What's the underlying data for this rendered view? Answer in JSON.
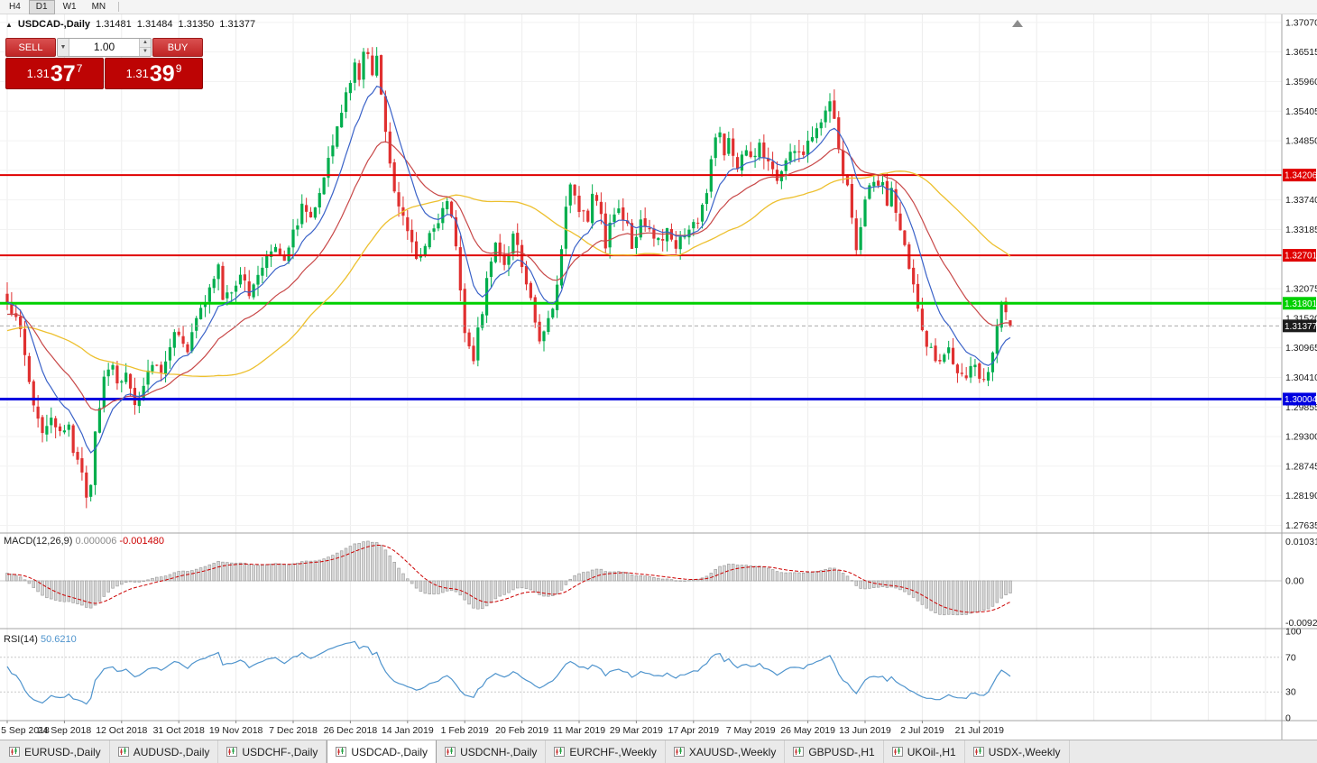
{
  "toolbar": {
    "buttons": [
      {
        "label": "H4",
        "active": false
      },
      {
        "label": "D1",
        "active": true
      },
      {
        "label": "W1",
        "active": false
      },
      {
        "label": "MN",
        "active": false
      }
    ]
  },
  "symbol_info": {
    "collapse_icon": "▲",
    "symbol": "USDCAD-,Daily",
    "open": "1.31481",
    "high": "1.31484",
    "low": "1.31350",
    "close": "1.31377"
  },
  "trade": {
    "sell_label": "SELL",
    "buy_label": "BUY",
    "volume": "1.00",
    "bid": {
      "prefix": "1.31",
      "big": "37",
      "sup": "7"
    },
    "ask": {
      "prefix": "1.31",
      "big": "39",
      "sup": "9"
    }
  },
  "price_axis": {
    "ladder": [
      1.3707,
      1.36515,
      1.3596,
      1.35405,
      1.3485,
      1.34295,
      1.3374,
      1.33185,
      1.3263,
      1.32075,
      1.3152,
      1.30965,
      1.3041,
      1.29855,
      1.293,
      1.28745,
      1.2819,
      1.27635
    ],
    "decimals": 5
  },
  "levels": [
    {
      "name": "resistance-line-1",
      "price": 1.34206,
      "label": "1.34206",
      "color": "#e00000",
      "width": 2
    },
    {
      "name": "resistance-line-2",
      "price": 1.32701,
      "label": "1.32701",
      "color": "#e00000",
      "width": 2
    },
    {
      "name": "support-line-green",
      "price": 1.31801,
      "label": "1.31801",
      "color": "#00d000",
      "width": 3
    },
    {
      "name": "support-line-blue",
      "price": 1.30004,
      "label": "1.30004",
      "color": "#0000e0",
      "width": 3
    }
  ],
  "current_price": {
    "price": 1.31377,
    "label": "1.31377",
    "badge_color": "#1b1b1b",
    "line_color": "#ababab"
  },
  "macd_panel": {
    "title": "MACD(12,26,9)",
    "value_main": "0.000006",
    "value_signal": "-0.001480",
    "axis_labels": [
      "0.010311",
      "0.00",
      "-0.009201"
    ],
    "histogram_fill": "#d8d8d8",
    "histogram_stroke": "#9f9f9f",
    "signal_color": "#cc0000"
  },
  "rsi_panel": {
    "title": "RSI(14)",
    "value": "50.6210",
    "axis_labels": [
      "100",
      "70",
      "30",
      "0"
    ],
    "level_lines": [
      70,
      30
    ],
    "line_color": "#4f94cd"
  },
  "dates": [
    "5 Sep 2018",
    "24 Sep 2018",
    "12 Oct 2018",
    "31 Oct 2018",
    "19 Nov 2018",
    "7 Dec 2018",
    "26 Dec 2018",
    "14 Jan 2019",
    "1 Feb 2019",
    "20 Feb 2019",
    "11 Mar 2019",
    "29 Mar 2019",
    "17 Apr 2019",
    "7 May 2019",
    "26 May 2019",
    "13 Jun 2019",
    "2 Jul 2019",
    "21 Jul 2019"
  ],
  "tabs": {
    "items": [
      "EURUSD-,Daily",
      "AUDUSD-,Daily",
      "USDCHF-,Daily",
      "USDCAD-,Daily",
      "USDCNH-,Daily",
      "EURCHF-,Weekly",
      "XAUUSD-,Weekly",
      "GBPUSD-,H1",
      "UKOil-,H1",
      "USDX-,Weekly"
    ],
    "active_index": 3
  },
  "chart_data": {
    "type": "candlestick",
    "symbol": "USDCAD",
    "timeframe": "Daily",
    "x_range": [
      "5 Sep 2018",
      "31 Jul 2019"
    ],
    "price_range": [
      1.27635,
      1.3707
    ],
    "candle_count": 229,
    "candles_per_gridline": 13,
    "up_color": "#00ae4d",
    "down_color": "#e03030",
    "last_ohlc": {
      "open": 1.31481,
      "high": 1.31484,
      "low": 1.3135,
      "close": 1.31377
    },
    "horizontal_levels": [
      1.34206,
      1.32701,
      1.31801,
      1.30004
    ],
    "ma_lines": [
      {
        "name": "fast",
        "type": "ema",
        "period": 10,
        "color": "#3a62c8"
      },
      {
        "name": "medium",
        "type": "ema",
        "period": 25,
        "color": "#c84848"
      },
      {
        "name": "slow",
        "type": "sma",
        "period": 50,
        "color": "#edc02f"
      }
    ],
    "close_anchors": [
      [
        0,
        1.3172
      ],
      [
        2,
        1.3165
      ],
      [
        4,
        1.308
      ],
      [
        6,
        1.299
      ],
      [
        8,
        1.2942
      ],
      [
        10,
        1.2955
      ],
      [
        12,
        1.293
      ],
      [
        14,
        1.2962
      ],
      [
        15,
        1.2906
      ],
      [
        17,
        1.2852
      ],
      [
        18,
        1.2822
      ],
      [
        19,
        1.284
      ],
      [
        20,
        1.295
      ],
      [
        22,
        1.3032
      ],
      [
        24,
        1.3068
      ],
      [
        25,
        1.3022
      ],
      [
        27,
        1.3052
      ],
      [
        29,
        1.2992
      ],
      [
        31,
        1.303
      ],
      [
        33,
        1.3075
      ],
      [
        35,
        1.3052
      ],
      [
        37,
        1.3105
      ],
      [
        39,
        1.313
      ],
      [
        41,
        1.3094
      ],
      [
        43,
        1.3146
      ],
      [
        45,
        1.3186
      ],
      [
        47,
        1.3228
      ],
      [
        48,
        1.3248
      ],
      [
        49,
        1.3182
      ],
      [
        51,
        1.3206
      ],
      [
        53,
        1.3238
      ],
      [
        55,
        1.3194
      ],
      [
        57,
        1.323
      ],
      [
        59,
        1.3272
      ],
      [
        61,
        1.3292
      ],
      [
        63,
        1.3268
      ],
      [
        65,
        1.3312
      ],
      [
        67,
        1.336
      ],
      [
        69,
        1.3344
      ],
      [
        71,
        1.3396
      ],
      [
        73,
        1.3448
      ],
      [
        75,
        1.3504
      ],
      [
        77,
        1.3574
      ],
      [
        79,
        1.3624
      ],
      [
        80,
        1.3594
      ],
      [
        81,
        1.3648
      ],
      [
        82,
        1.3658
      ],
      [
        83,
        1.3604
      ],
      [
        84,
        1.3642
      ],
      [
        85,
        1.3564
      ],
      [
        86,
        1.3504
      ],
      [
        87,
        1.3452
      ],
      [
        88,
        1.3394
      ],
      [
        90,
        1.3344
      ],
      [
        92,
        1.3298
      ],
      [
        93,
        1.327
      ],
      [
        95,
        1.3292
      ],
      [
        96,
        1.3314
      ],
      [
        98,
        1.334
      ],
      [
        100,
        1.3364
      ],
      [
        101,
        1.3334
      ],
      [
        102,
        1.3294
      ],
      [
        103,
        1.3202
      ],
      [
        104,
        1.3134
      ],
      [
        105,
        1.31
      ],
      [
        106,
        1.3078
      ],
      [
        107,
        1.3124
      ],
      [
        108,
        1.3165
      ],
      [
        109,
        1.3226
      ],
      [
        110,
        1.3268
      ],
      [
        111,
        1.3296
      ],
      [
        112,
        1.3278
      ],
      [
        113,
        1.325
      ],
      [
        114,
        1.3264
      ],
      [
        115,
        1.33
      ],
      [
        116,
        1.3284
      ],
      [
        117,
        1.3246
      ],
      [
        118,
        1.3226
      ],
      [
        119,
        1.3186
      ],
      [
        120,
        1.3144
      ],
      [
        121,
        1.3112
      ],
      [
        122,
        1.3136
      ],
      [
        123,
        1.3158
      ],
      [
        124,
        1.3166
      ],
      [
        125,
        1.3216
      ],
      [
        126,
        1.3286
      ],
      [
        127,
        1.3356
      ],
      [
        128,
        1.3408
      ],
      [
        129,
        1.3388
      ],
      [
        130,
        1.3362
      ],
      [
        132,
        1.3344
      ],
      [
        133,
        1.3378
      ],
      [
        135,
        1.3352
      ],
      [
        136,
        1.3286
      ],
      [
        137,
        1.3332
      ],
      [
        139,
        1.3362
      ],
      [
        141,
        1.333
      ],
      [
        142,
        1.329
      ],
      [
        144,
        1.334
      ],
      [
        146,
        1.3322
      ],
      [
        148,
        1.3292
      ],
      [
        150,
        1.3312
      ],
      [
        152,
        1.3292
      ],
      [
        154,
        1.3304
      ],
      [
        156,
        1.3324
      ],
      [
        158,
        1.3356
      ],
      [
        159,
        1.339
      ],
      [
        160,
        1.345
      ],
      [
        161,
        1.349
      ],
      [
        162,
        1.35
      ],
      [
        163,
        1.3466
      ],
      [
        164,
        1.3486
      ],
      [
        165,
        1.3452
      ],
      [
        166,
        1.3432
      ],
      [
        167,
        1.3456
      ],
      [
        168,
        1.347
      ],
      [
        169,
        1.3446
      ],
      [
        171,
        1.3476
      ],
      [
        173,
        1.3446
      ],
      [
        175,
        1.3416
      ],
      [
        177,
        1.3448
      ],
      [
        179,
        1.3472
      ],
      [
        181,
        1.3458
      ],
      [
        182,
        1.3478
      ],
      [
        183,
        1.3498
      ],
      [
        184,
        1.3512
      ],
      [
        185,
        1.353
      ],
      [
        186,
        1.3548
      ],
      [
        187,
        1.356
      ],
      [
        188,
        1.3535
      ],
      [
        189,
        1.3478
      ],
      [
        190,
        1.3428
      ],
      [
        191,
        1.3395
      ],
      [
        192,
        1.3345
      ],
      [
        193,
        1.3288
      ],
      [
        194,
        1.3324
      ],
      [
        195,
        1.337
      ],
      [
        196,
        1.34
      ],
      [
        197,
        1.3416
      ],
      [
        198,
        1.3392
      ],
      [
        199,
        1.3404
      ],
      [
        200,
        1.3374
      ],
      [
        201,
        1.339
      ],
      [
        202,
        1.3346
      ],
      [
        203,
        1.3314
      ],
      [
        204,
        1.3282
      ],
      [
        205,
        1.3248
      ],
      [
        206,
        1.3208
      ],
      [
        207,
        1.3165
      ],
      [
        208,
        1.3128
      ],
      [
        209,
        1.3108
      ],
      [
        210,
        1.3094
      ],
      [
        211,
        1.3076
      ],
      [
        212,
        1.3068
      ],
      [
        213,
        1.3082
      ],
      [
        214,
        1.3092
      ],
      [
        215,
        1.3068
      ],
      [
        216,
        1.3052
      ],
      [
        217,
        1.304
      ],
      [
        218,
        1.303
      ],
      [
        219,
        1.3052
      ],
      [
        220,
        1.3066
      ],
      [
        221,
        1.3048
      ],
      [
        222,
        1.3035
      ],
      [
        223,
        1.3062
      ],
      [
        224,
        1.3095
      ],
      [
        225,
        1.3138
      ],
      [
        226,
        1.3175
      ],
      [
        227,
        1.3158
      ],
      [
        228,
        1.31377
      ]
    ]
  }
}
